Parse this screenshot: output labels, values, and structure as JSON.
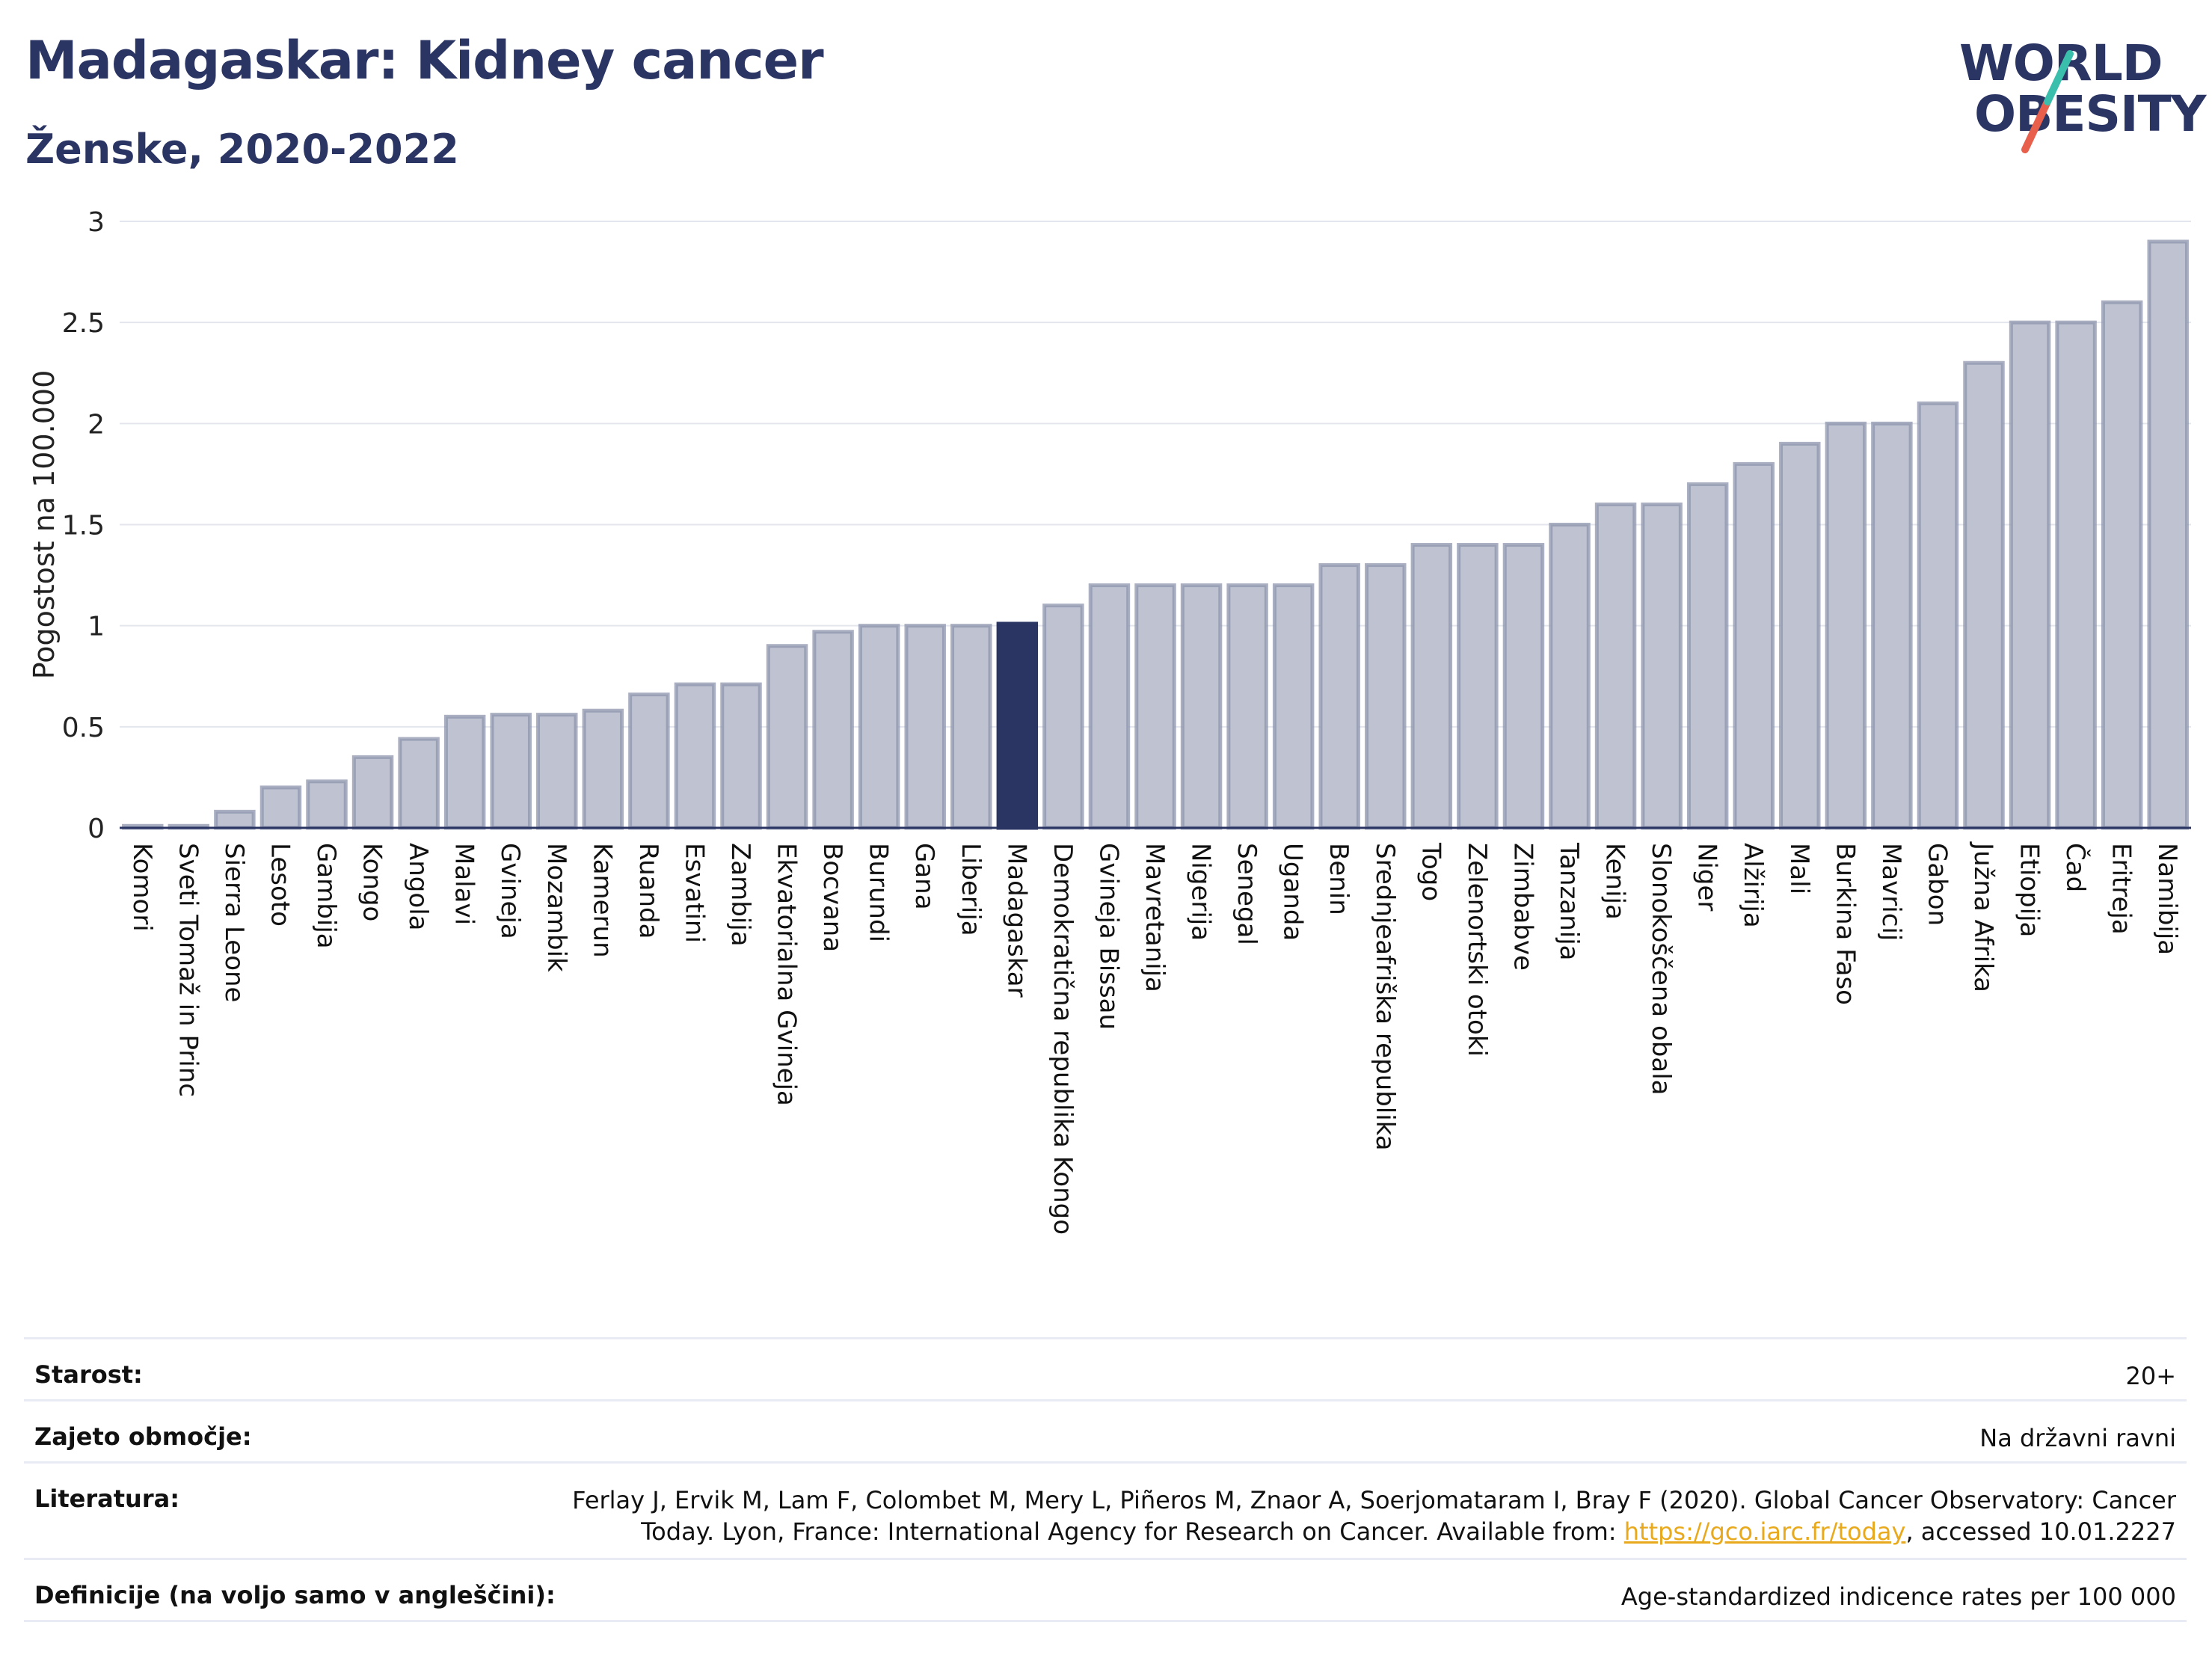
{
  "header": {
    "title": "Madagaskar: Kidney cancer",
    "subtitle": "Ženske, 2020-2022"
  },
  "logo": {
    "line1": "WORLD",
    "line2": "OBESITY",
    "text_color": "#2b3564",
    "slash_colors": [
      "#3bbfad",
      "#e8604c"
    ]
  },
  "chart_data": {
    "type": "bar",
    "ylabel": "Pogostost na 100.000",
    "ylim": [
      0,
      3
    ],
    "yticks": [
      "0",
      "0.5",
      "1",
      "1.5",
      "2",
      "2.5",
      "3"
    ],
    "ytick_values": [
      0,
      0.5,
      1,
      1.5,
      2,
      2.5,
      3
    ],
    "grid": true,
    "highlight": "Madagaskar",
    "colors": {
      "bar": "#bfc3d1",
      "bar_edge": "#8e95ad",
      "highlight": "#2b3564"
    },
    "categories": [
      "Komori",
      "Sveti Tomaž in Princ",
      "Sierra Leone",
      "Lesoto",
      "Gambija",
      "Kongo",
      "Angola",
      "Malavi",
      "Gvineja",
      "Mozambik",
      "Kamerun",
      "Ruanda",
      "Esvatini",
      "Zambija",
      "Ekvatorialna Gvineja",
      "Bocvana",
      "Burundi",
      "Gana",
      "Liberija",
      "Madagaskar",
      "Demokratična republika Kongo",
      "Gvineja Bissau",
      "Mavretanija",
      "Nigerija",
      "Senegal",
      "Uganda",
      "Benin",
      "Srednjeafriška republika",
      "Togo",
      "Zelenortski otoki",
      "Zimbabve",
      "Tanzanija",
      "Kenija",
      "Slonokoščena obala",
      "Niger",
      "Alžirija",
      "Mali",
      "Burkina Faso",
      "Mavricij",
      "Gabon",
      "Južna Afrika",
      "Etiopija",
      "Čad",
      "Eritreja",
      "Namibija"
    ],
    "values": [
      0.01,
      0.01,
      0.08,
      0.2,
      0.23,
      0.35,
      0.44,
      0.55,
      0.56,
      0.56,
      0.58,
      0.66,
      0.71,
      0.71,
      0.9,
      0.97,
      1.0,
      1.0,
      1.0,
      1.01,
      1.1,
      1.2,
      1.2,
      1.2,
      1.2,
      1.2,
      1.3,
      1.3,
      1.4,
      1.4,
      1.4,
      1.5,
      1.6,
      1.6,
      1.7,
      1.8,
      1.9,
      2.0,
      2.0,
      2.1,
      2.3,
      2.5,
      2.5,
      2.6,
      2.9
    ]
  },
  "meta": {
    "age_label": "Starost:",
    "age_value": "20+",
    "coverage_label": "Zajeto območje:",
    "coverage_value": "Na državni ravni",
    "references_label": "Literatura:",
    "references_line1": "Ferlay J, Ervik M, Lam F, Colombet M, Mery L, Piñeros M, Znaor A, Soerjomataram I, Bray F (2020). Global Cancer Observatory: Cancer",
    "references_line2_pre": "Today. Lyon, France: International Agency for Research on Cancer. Available from: ",
    "references_link": "https://gco.iarc.fr/today",
    "references_line2_post": ", accessed 10.01.2227",
    "definitions_label": "Definicije (na voljo samo v angleščini):",
    "definitions_value": "Age-standardized indicence rates per 100 000"
  }
}
